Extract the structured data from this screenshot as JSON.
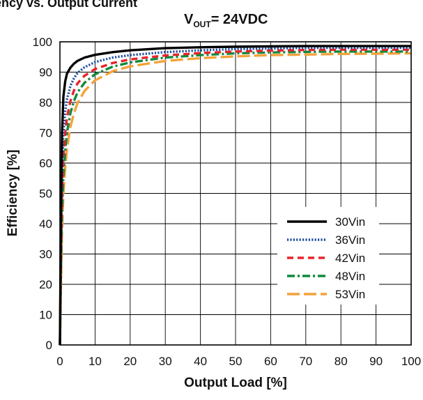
{
  "page": {
    "title": "ency vs. Output Current",
    "subtitle_prefix": "V",
    "subtitle_sub": "OUT",
    "subtitle_suffix": "= 24VDC"
  },
  "chart_data": {
    "type": "line",
    "xlabel": "Output Load [%]",
    "ylabel": "Efficiency [%]",
    "xlim": [
      0,
      100
    ],
    "ylim": [
      0,
      100
    ],
    "xticks": [
      0,
      10,
      20,
      30,
      40,
      50,
      60,
      70,
      80,
      90,
      100
    ],
    "yticks": [
      0,
      10,
      20,
      30,
      40,
      50,
      60,
      70,
      80,
      90,
      100
    ],
    "grid": true,
    "legend_position": "lower-right",
    "x": [
      0,
      0.3,
      0.6,
      1,
      1.5,
      2,
      3,
      4,
      5,
      7,
      10,
      15,
      20,
      30,
      40,
      50,
      60,
      70,
      80,
      90,
      100
    ],
    "series": [
      {
        "name": "30Vin",
        "color": "#000000",
        "dash": "solid",
        "values": [
          0,
          45,
          70,
          82,
          87,
          89.5,
          91.5,
          92.8,
          93.7,
          94.8,
          95.7,
          96.6,
          97.2,
          97.9,
          98.2,
          98.4,
          98.5,
          98.6,
          98.6,
          98.6,
          98.6
        ]
      },
      {
        "name": "36Vin",
        "color": "#1f4ea0",
        "dash": "dotted",
        "values": [
          0,
          36,
          58,
          70,
          77,
          81,
          85.5,
          88,
          89.7,
          91.6,
          93.3,
          94.8,
          95.6,
          96.6,
          97.2,
          97.6,
          97.8,
          98.0,
          98.0,
          98.0,
          98.0
        ]
      },
      {
        "name": "42Vin",
        "color": "#e8232a",
        "dash": "dashed",
        "values": [
          0,
          30,
          50,
          62,
          70,
          75,
          80.5,
          84,
          86.3,
          88.8,
          91.0,
          93.0,
          94.2,
          95.5,
          96.3,
          96.8,
          97.1,
          97.3,
          97.4,
          97.4,
          97.4
        ]
      },
      {
        "name": "48Vin",
        "color": "#0f8a3e",
        "dash": "dashdot",
        "values": [
          0,
          25,
          44,
          56,
          64,
          70,
          76.5,
          80.5,
          83.3,
          86.5,
          89.3,
          91.8,
          93.2,
          94.8,
          95.6,
          96.2,
          96.5,
          96.7,
          96.8,
          96.8,
          96.8
        ]
      },
      {
        "name": "53Vin",
        "color": "#f4a23a",
        "dash": "longdash",
        "values": [
          0,
          20,
          38,
          50,
          58.5,
          64.5,
          72,
          76.5,
          79.8,
          83.8,
          87.3,
          90.3,
          91.9,
          93.7,
          94.6,
          95.2,
          95.6,
          95.8,
          96.0,
          96.1,
          96.2
        ]
      }
    ]
  }
}
